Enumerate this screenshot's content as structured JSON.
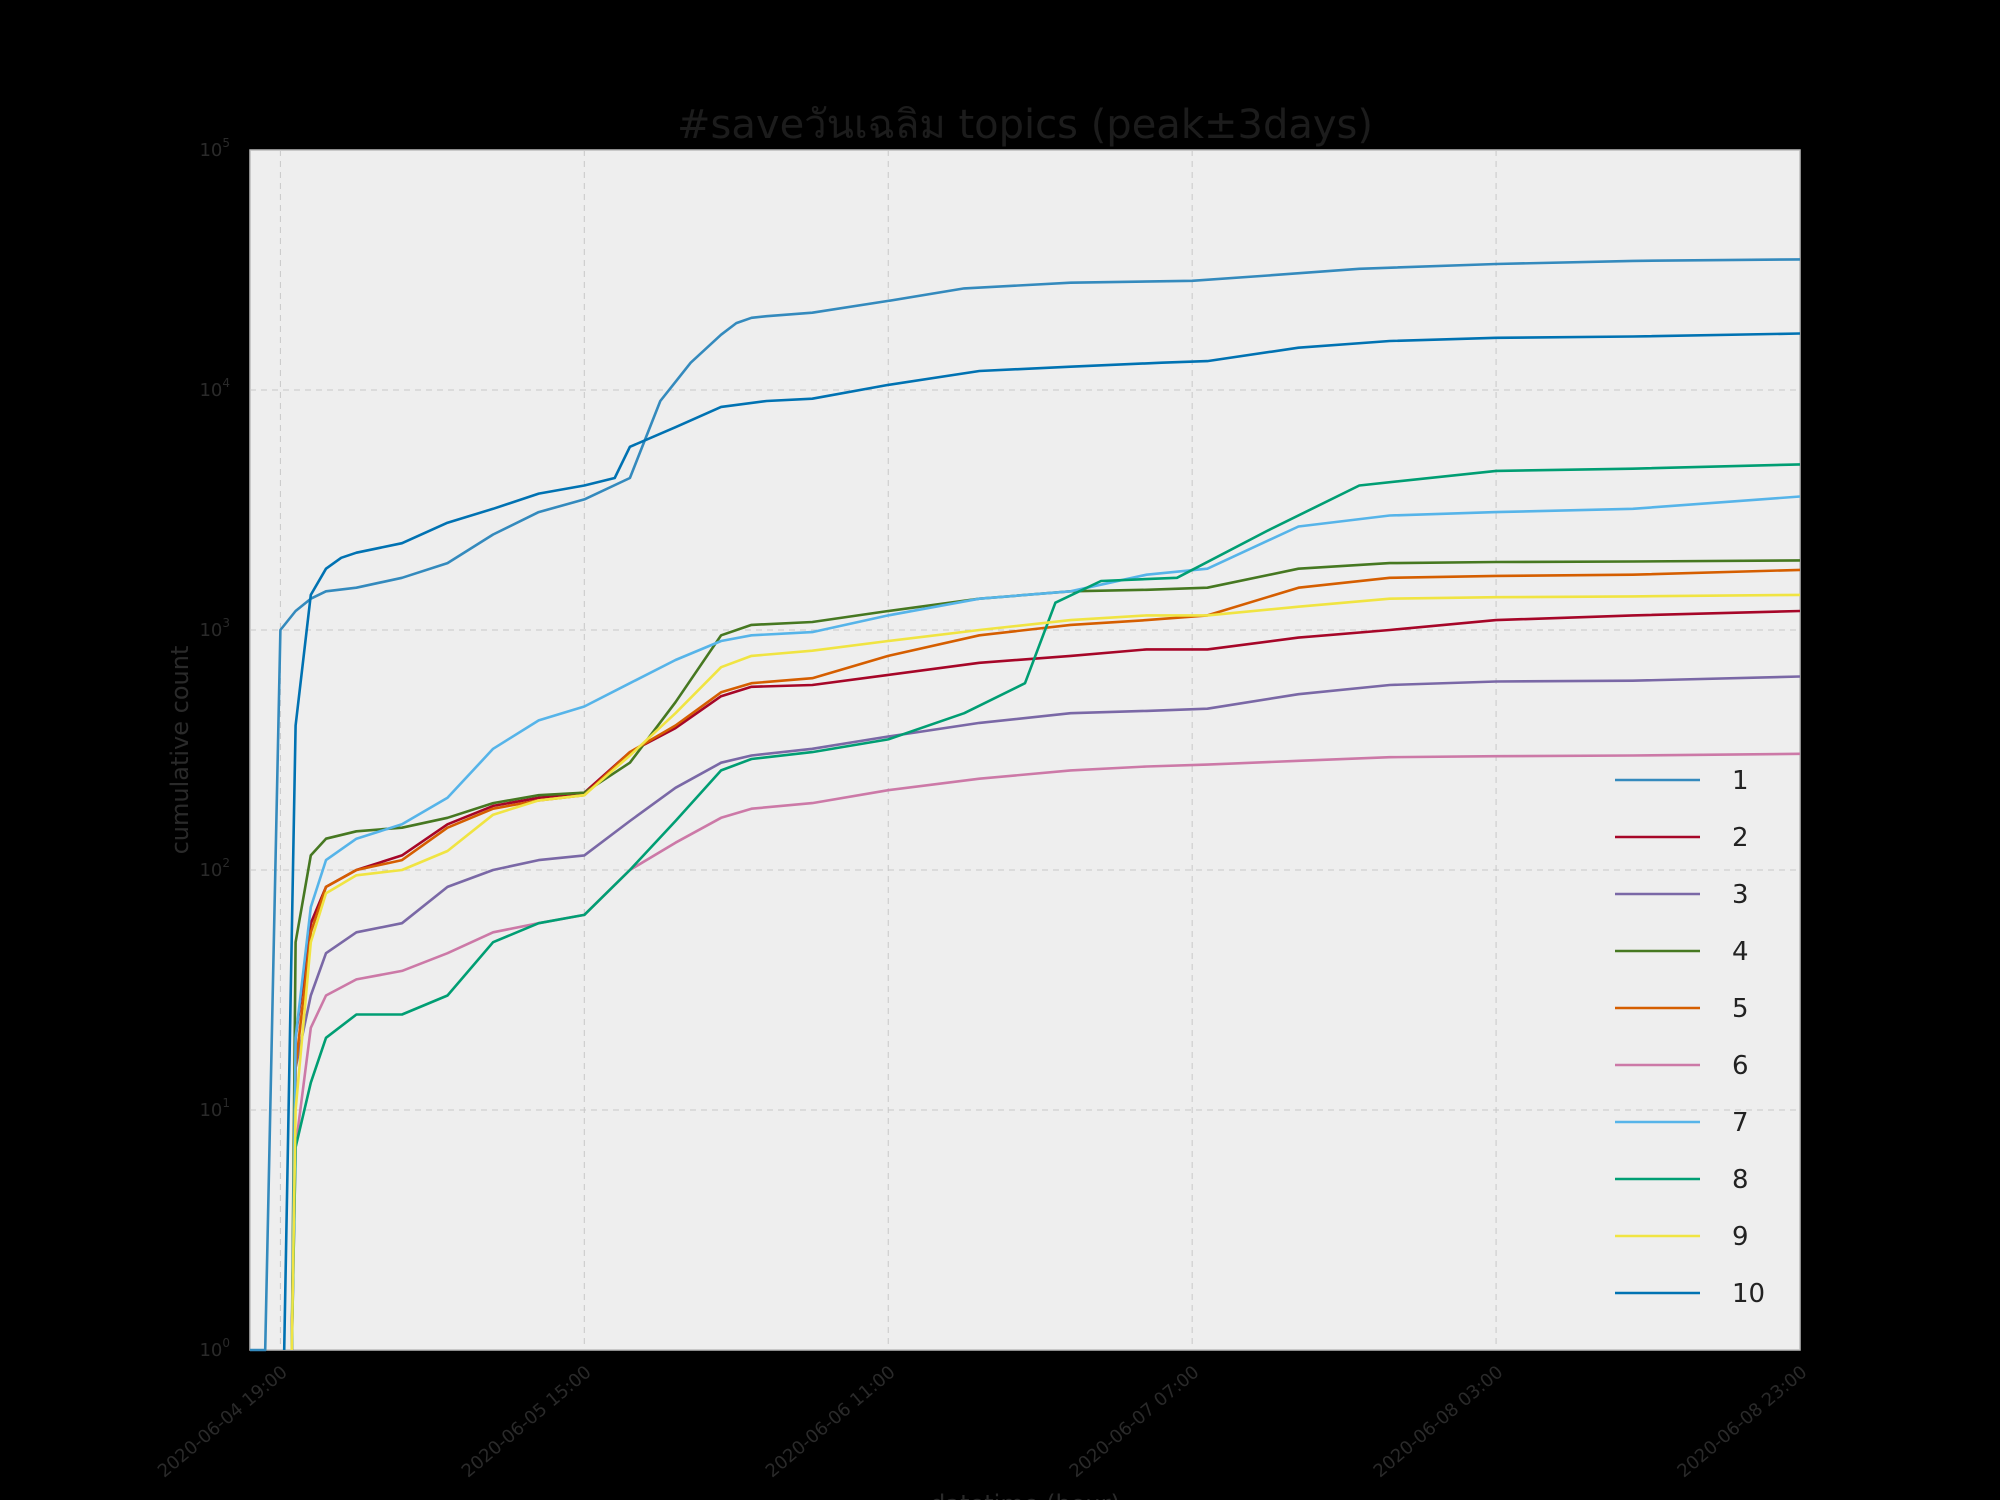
{
  "chart_data": {
    "type": "line",
    "title": "#saveวันเฉลิม topics (peak±3days)",
    "xlabel": "datetime (hour)",
    "ylabel": "cumulative count",
    "yscale": "log",
    "ylim": [
      1,
      100000
    ],
    "y_ticks": [
      {
        "value": 1,
        "base": "10",
        "exp": "0"
      },
      {
        "value": 10,
        "base": "10",
        "exp": "1"
      },
      {
        "value": 100,
        "base": "10",
        "exp": "2"
      },
      {
        "value": 1000,
        "base": "10",
        "exp": "3"
      },
      {
        "value": 10000,
        "base": "10",
        "exp": "4"
      },
      {
        "value": 100000,
        "base": "10",
        "exp": "5"
      }
    ],
    "x_range": [
      "2020-06-04 17:00",
      "2020-06-08 23:00"
    ],
    "x_ticks": [
      "2020-06-04 19:00",
      "2020-06-05 15:00",
      "2020-06-06 11:00",
      "2020-06-07 07:00",
      "2020-06-08 03:00",
      "2020-06-08 23:00"
    ],
    "grid": true,
    "legend_position": "lower-right",
    "series": [
      {
        "name": "1",
        "color": "#348abd",
        "x": [
          "2020-06-04 17:00",
          "2020-06-04 18:00",
          "2020-06-04 19:00",
          "2020-06-04 20:00",
          "2020-06-04 21:00",
          "2020-06-04 22:00",
          "2020-06-05 00:00",
          "2020-06-05 03:00",
          "2020-06-05 06:00",
          "2020-06-05 09:00",
          "2020-06-05 12:00",
          "2020-06-05 15:00",
          "2020-06-05 18:00",
          "2020-06-05 20:00",
          "2020-06-05 22:00",
          "2020-06-06 00:00",
          "2020-06-06 01:00",
          "2020-06-06 02:00",
          "2020-06-06 03:00",
          "2020-06-06 06:00",
          "2020-06-06 11:00",
          "2020-06-06 16:00",
          "2020-06-06 23:00",
          "2020-06-07 07:00",
          "2020-06-07 12:00",
          "2020-06-07 18:00",
          "2020-06-08 03:00",
          "2020-06-08 12:00",
          "2020-06-08 23:00"
        ],
        "values": [
          1,
          1,
          1000,
          1200,
          1350,
          1450,
          1500,
          1650,
          1900,
          2500,
          3100,
          3500,
          4300,
          9000,
          13000,
          17000,
          19000,
          20000,
          20300,
          21000,
          23500,
          26500,
          28000,
          28500,
          30000,
          32000,
          33500,
          34500,
          35000
        ]
      },
      {
        "name": "2",
        "color": "#a60628",
        "x": [
          "2020-06-04 19:45",
          "2020-06-04 20:00",
          "2020-06-04 21:00",
          "2020-06-04 22:00",
          "2020-06-05 00:00",
          "2020-06-05 03:00",
          "2020-06-05 06:00",
          "2020-06-05 09:00",
          "2020-06-05 12:00",
          "2020-06-05 15:00",
          "2020-06-05 18:00",
          "2020-06-05 21:00",
          "2020-06-06 00:00",
          "2020-06-06 02:00",
          "2020-06-06 06:00",
          "2020-06-06 11:00",
          "2020-06-06 17:00",
          "2020-06-06 23:00",
          "2020-06-07 04:00",
          "2020-06-07 08:00",
          "2020-06-07 14:00",
          "2020-06-07 20:00",
          "2020-06-08 03:00",
          "2020-06-08 12:00",
          "2020-06-08 23:00"
        ],
        "values": [
          1,
          20,
          60,
          85,
          100,
          115,
          155,
          185,
          200,
          210,
          310,
          390,
          530,
          580,
          590,
          650,
          730,
          780,
          830,
          830,
          930,
          1000,
          1100,
          1150,
          1200
        ]
      },
      {
        "name": "3",
        "color": "#7a68a6",
        "x": [
          "2020-06-04 19:45",
          "2020-06-04 20:00",
          "2020-06-04 21:00",
          "2020-06-04 22:00",
          "2020-06-05 00:00",
          "2020-06-05 03:00",
          "2020-06-05 06:00",
          "2020-06-05 09:00",
          "2020-06-05 12:00",
          "2020-06-05 15:00",
          "2020-06-05 18:00",
          "2020-06-05 21:00",
          "2020-06-06 00:00",
          "2020-06-06 02:00",
          "2020-06-06 06:00",
          "2020-06-06 11:00",
          "2020-06-06 17:00",
          "2020-06-06 23:00",
          "2020-06-07 04:00",
          "2020-06-07 08:00",
          "2020-06-07 14:00",
          "2020-06-07 20:00",
          "2020-06-08 03:00",
          "2020-06-08 12:00",
          "2020-06-08 23:00"
        ],
        "values": [
          1,
          15,
          30,
          45,
          55,
          60,
          85,
          100,
          110,
          115,
          160,
          220,
          280,
          300,
          320,
          360,
          410,
          450,
          460,
          470,
          540,
          590,
          610,
          615,
          640
        ]
      },
      {
        "name": "4",
        "color": "#467821",
        "x": [
          "2020-06-04 19:45",
          "2020-06-04 20:00",
          "2020-06-04 21:00",
          "2020-06-04 22:00",
          "2020-06-05 00:00",
          "2020-06-05 03:00",
          "2020-06-05 06:00",
          "2020-06-05 09:00",
          "2020-06-05 12:00",
          "2020-06-05 15:00",
          "2020-06-05 18:00",
          "2020-06-05 21:00",
          "2020-06-06 00:00",
          "2020-06-06 02:00",
          "2020-06-06 06:00",
          "2020-06-06 11:00",
          "2020-06-06 17:00",
          "2020-06-06 23:00",
          "2020-06-07 04:00",
          "2020-06-07 08:00",
          "2020-06-07 14:00",
          "2020-06-07 20:00",
          "2020-06-08 03:00",
          "2020-06-08 12:00",
          "2020-06-08 23:00"
        ],
        "values": [
          1,
          50,
          115,
          135,
          145,
          150,
          165,
          190,
          205,
          210,
          280,
          500,
          950,
          1050,
          1080,
          1200,
          1350,
          1450,
          1470,
          1500,
          1800,
          1900,
          1920,
          1930,
          1950
        ]
      },
      {
        "name": "5",
        "color": "#d55e00",
        "x": [
          "2020-06-04 19:45",
          "2020-06-04 20:00",
          "2020-06-04 21:00",
          "2020-06-04 22:00",
          "2020-06-05 00:00",
          "2020-06-05 03:00",
          "2020-06-05 06:00",
          "2020-06-05 09:00",
          "2020-06-05 12:00",
          "2020-06-05 15:00",
          "2020-06-05 18:00",
          "2020-06-05 21:00",
          "2020-06-06 00:00",
          "2020-06-06 02:00",
          "2020-06-06 06:00",
          "2020-06-06 11:00",
          "2020-06-06 17:00",
          "2020-06-06 23:00",
          "2020-06-07 04:00",
          "2020-06-07 08:00",
          "2020-06-07 14:00",
          "2020-06-07 20:00",
          "2020-06-08 03:00",
          "2020-06-08 12:00",
          "2020-06-08 23:00"
        ],
        "values": [
          1,
          15,
          55,
          85,
          100,
          110,
          150,
          180,
          195,
          205,
          310,
          400,
          550,
          600,
          630,
          780,
          950,
          1050,
          1100,
          1150,
          1500,
          1650,
          1680,
          1700,
          1780
        ]
      },
      {
        "name": "6",
        "color": "#cc79a7",
        "x": [
          "2020-06-04 19:45",
          "2020-06-04 20:00",
          "2020-06-04 21:00",
          "2020-06-04 22:00",
          "2020-06-05 00:00",
          "2020-06-05 03:00",
          "2020-06-05 06:00",
          "2020-06-05 09:00",
          "2020-06-05 12:00",
          "2020-06-05 15:00",
          "2020-06-05 18:00",
          "2020-06-05 21:00",
          "2020-06-06 00:00",
          "2020-06-06 02:00",
          "2020-06-06 06:00",
          "2020-06-06 11:00",
          "2020-06-06 17:00",
          "2020-06-06 23:00",
          "2020-06-07 04:00",
          "2020-06-07 08:00",
          "2020-06-07 14:00",
          "2020-06-07 20:00",
          "2020-06-08 03:00",
          "2020-06-08 12:00",
          "2020-06-08 23:00"
        ],
        "values": [
          1,
          7,
          22,
          30,
          35,
          38,
          45,
          55,
          60,
          65,
          100,
          130,
          165,
          180,
          190,
          215,
          240,
          260,
          270,
          275,
          285,
          295,
          298,
          300,
          305
        ]
      },
      {
        "name": "7",
        "color": "#56b4e9",
        "x": [
          "2020-06-04 19:45",
          "2020-06-04 20:00",
          "2020-06-04 21:00",
          "2020-06-04 22:00",
          "2020-06-05 00:00",
          "2020-06-05 03:00",
          "2020-06-05 06:00",
          "2020-06-05 09:00",
          "2020-06-05 12:00",
          "2020-06-05 15:00",
          "2020-06-05 18:00",
          "2020-06-05 21:00",
          "2020-06-06 00:00",
          "2020-06-06 02:00",
          "2020-06-06 06:00",
          "2020-06-06 11:00",
          "2020-06-06 17:00",
          "2020-06-06 23:00",
          "2020-06-07 04:00",
          "2020-06-07 08:00",
          "2020-06-07 14:00",
          "2020-06-07 20:00",
          "2020-06-08 03:00",
          "2020-06-08 12:00",
          "2020-06-08 23:00"
        ],
        "values": [
          1,
          20,
          70,
          110,
          135,
          155,
          200,
          320,
          420,
          480,
          600,
          750,
          900,
          950,
          980,
          1150,
          1350,
          1450,
          1700,
          1800,
          2700,
          3000,
          3100,
          3200,
          3600
        ]
      },
      {
        "name": "8",
        "color": "#009e73",
        "x": [
          "2020-06-04 19:45",
          "2020-06-04 20:00",
          "2020-06-04 21:00",
          "2020-06-04 22:00",
          "2020-06-05 00:00",
          "2020-06-05 03:00",
          "2020-06-05 06:00",
          "2020-06-05 09:00",
          "2020-06-05 12:00",
          "2020-06-05 15:00",
          "2020-06-05 18:00",
          "2020-06-05 21:00",
          "2020-06-06 00:00",
          "2020-06-06 02:00",
          "2020-06-06 06:00",
          "2020-06-06 11:00",
          "2020-06-06 16:00",
          "2020-06-06 20:00",
          "2020-06-06 22:00",
          "2020-06-07 01:00",
          "2020-06-07 06:00",
          "2020-06-07 12:00",
          "2020-06-07 18:00",
          "2020-06-08 03:00",
          "2020-06-08 12:00",
          "2020-06-08 23:00"
        ],
        "values": [
          1,
          7,
          13,
          20,
          25,
          25,
          30,
          50,
          60,
          65,
          100,
          160,
          260,
          290,
          310,
          350,
          450,
          600,
          1300,
          1600,
          1650,
          2600,
          4000,
          4600,
          4700,
          4900
        ]
      },
      {
        "name": "9",
        "color": "#f0e442",
        "x": [
          "2020-06-04 19:45",
          "2020-06-04 20:00",
          "2020-06-04 21:00",
          "2020-06-04 22:00",
          "2020-06-05 00:00",
          "2020-06-05 03:00",
          "2020-06-05 06:00",
          "2020-06-05 09:00",
          "2020-06-05 12:00",
          "2020-06-05 15:00",
          "2020-06-05 18:00",
          "2020-06-05 21:00",
          "2020-06-06 00:00",
          "2020-06-06 02:00",
          "2020-06-06 06:00",
          "2020-06-06 11:00",
          "2020-06-06 17:00",
          "2020-06-06 23:00",
          "2020-06-07 04:00",
          "2020-06-07 08:00",
          "2020-06-07 14:00",
          "2020-06-07 20:00",
          "2020-06-08 03:00",
          "2020-06-08 12:00",
          "2020-06-08 23:00"
        ],
        "values": [
          1,
          10,
          50,
          80,
          95,
          100,
          120,
          170,
          195,
          205,
          300,
          450,
          700,
          780,
          820,
          900,
          1000,
          1100,
          1150,
          1150,
          1250,
          1350,
          1370,
          1380,
          1400
        ]
      },
      {
        "name": "10",
        "color": "#0072b2",
        "x": [
          "2020-06-04 19:15",
          "2020-06-04 20:00",
          "2020-06-04 21:00",
          "2020-06-04 22:00",
          "2020-06-04 23:00",
          "2020-06-05 00:00",
          "2020-06-05 03:00",
          "2020-06-05 06:00",
          "2020-06-05 09:00",
          "2020-06-05 12:00",
          "2020-06-05 15:00",
          "2020-06-05 17:00",
          "2020-06-05 18:00",
          "2020-06-05 21:00",
          "2020-06-06 00:00",
          "2020-06-06 03:00",
          "2020-06-06 06:00",
          "2020-06-06 11:00",
          "2020-06-06 17:00",
          "2020-06-06 23:00",
          "2020-06-07 05:00",
          "2020-06-07 08:00",
          "2020-06-07 14:00",
          "2020-06-07 20:00",
          "2020-06-08 03:00",
          "2020-06-08 12:00",
          "2020-06-08 23:00"
        ],
        "values": [
          1,
          400,
          1400,
          1800,
          2000,
          2100,
          2300,
          2800,
          3200,
          3700,
          4000,
          4300,
          5800,
          7000,
          8500,
          9000,
          9200,
          10500,
          12000,
          12500,
          13000,
          13200,
          15000,
          16000,
          16500,
          16700,
          17200
        ]
      }
    ]
  }
}
